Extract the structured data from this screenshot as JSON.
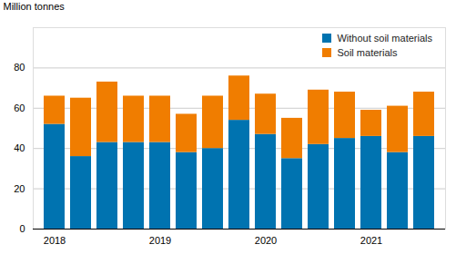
{
  "chart_data": {
    "type": "bar",
    "stacked": true,
    "grid": true,
    "legend": "top-right",
    "y_label": "Million tonnes",
    "categories": [
      "2018",
      null,
      null,
      null,
      "2019",
      null,
      null,
      null,
      "2020",
      null,
      null,
      null,
      "2021",
      null,
      null
    ],
    "series": [
      {
        "name": "Without soil materials",
        "color": "#0073b0",
        "values": [
          52,
          36,
          43,
          43,
          43,
          38,
          40,
          54,
          47,
          35,
          42,
          45,
          46,
          38,
          46
        ]
      },
      {
        "name": "Soil materials",
        "color": "#f07d00",
        "values": [
          14,
          29,
          30,
          23,
          23,
          19,
          26,
          22,
          20,
          20,
          27,
          23,
          13,
          23,
          22
        ]
      }
    ],
    "ylim": [
      0,
      100
    ],
    "yticks": [
      0,
      20,
      40,
      60,
      80
    ]
  }
}
